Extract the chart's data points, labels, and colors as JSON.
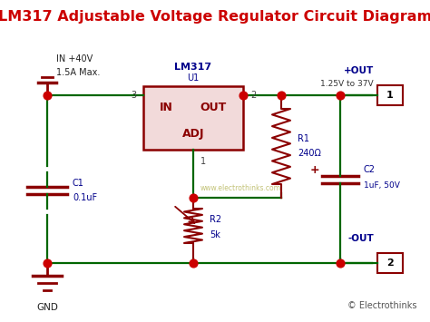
{
  "title": "LM317 Adjustable Voltage Regulator Circuit Diagram",
  "title_color": "#cc0000",
  "title_fontsize": 11.5,
  "bg_color": "#ffffff",
  "wire_color": "#006600",
  "component_color": "#8b0000",
  "label_color": "#00008b",
  "dot_color": "#cc0000",
  "watermark": "www.electrothinks.com",
  "watermark_color": "#b8b860",
  "copyright": "© Electrothinks",
  "copyright_color": "#555555"
}
